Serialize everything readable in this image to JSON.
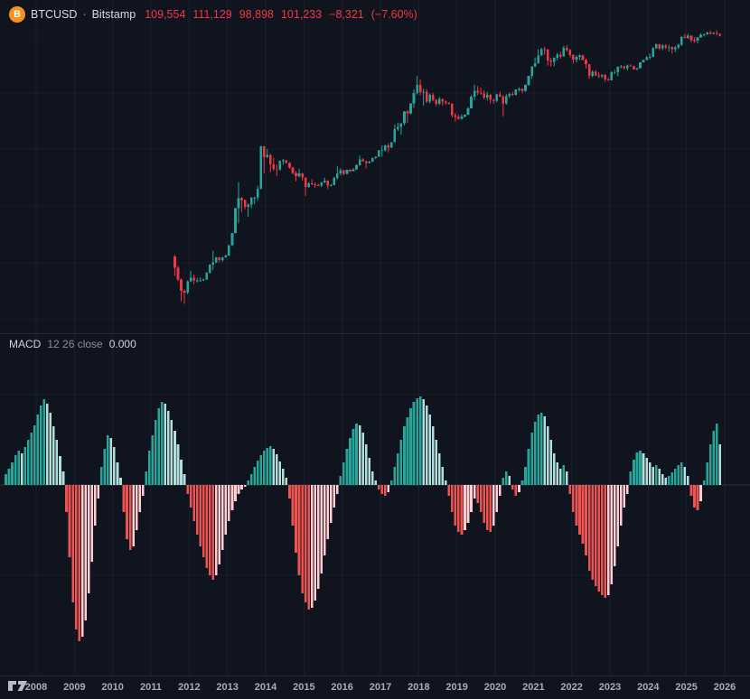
{
  "header": {
    "logo_glyph": "B",
    "symbol": "BTCUSD",
    "separator": "·",
    "exchange": "Bitstamp",
    "open": "109,554",
    "high": "111,129",
    "low": "98,898",
    "close": "101,233",
    "change": "−8,321",
    "change_pct": "(−7.60%)"
  },
  "indicator": {
    "name": "MACD",
    "params": "12 26 close",
    "value": "0.000"
  },
  "time_axis": {
    "years": [
      "2008",
      "2009",
      "2010",
      "2011",
      "2012",
      "2013",
      "2014",
      "2015",
      "2016",
      "2017",
      "2018",
      "2019",
      "2020",
      "2021",
      "2022",
      "2023",
      "2024",
      "2025",
      "2026"
    ]
  },
  "colors": {
    "background": "#10141f",
    "grid": "rgba(255,255,255,0.05)",
    "grid_soft": "rgba(255,255,255,0.04)",
    "zero_line": "rgba(134,139,152,0.28)",
    "divider": "#262b3d",
    "candle_up": "#26a69a",
    "candle_down": "#f23645",
    "hist_grow_above": "#26a69a",
    "hist_fall_above": "#b2dfdb",
    "hist_fall_below": "#ef5350",
    "hist_grow_below": "#ffcdd2",
    "accent_orange": "#f7931a",
    "legend_text": "#d6dae3",
    "muted_text": "#8a8f9c",
    "value_down": "#f23645",
    "axis_text": "#a8adba"
  },
  "chart_data": [
    {
      "type": "candlestick",
      "name": "BTCUSD monthly",
      "y_scale": "log",
      "interval": "1M",
      "start_month": "2011-08",
      "ohlc": [
        [
          13,
          13.9,
          5.9,
          8.2
        ],
        [
          8.2,
          8.9,
          4.8,
          5.1
        ],
        [
          5.1,
          5.3,
          2.1,
          3.2
        ],
        [
          3.2,
          3.4,
          1.9,
          3
        ],
        [
          3,
          4.9,
          2.8,
          4.7
        ],
        [
          4.7,
          7.2,
          4.6,
          5.5
        ],
        [
          5.5,
          6.2,
          4.2,
          4.9
        ],
        [
          4.9,
          5.4,
          4.5,
          4.9
        ],
        [
          4.9,
          5.6,
          4.7,
          4.9
        ],
        [
          4.9,
          5.3,
          4.8,
          5.1
        ],
        [
          5.1,
          6.9,
          5,
          6.7
        ],
        [
          6.7,
          9.5,
          6.5,
          9.4
        ],
        [
          9.4,
          16.4,
          7.5,
          10.2
        ],
        [
          10.2,
          12.7,
          9.9,
          12.4
        ],
        [
          12.4,
          12.8,
          10.2,
          11.2
        ],
        [
          11.2,
          12.8,
          10.5,
          12.6
        ],
        [
          12.6,
          14,
          12.4,
          13.5
        ],
        [
          13.5,
          20.6,
          13.2,
          20.4
        ],
        [
          20.4,
          33.5,
          19.9,
          33.4
        ],
        [
          33.4,
          94,
          33,
          93
        ],
        [
          93,
          266,
          50,
          139
        ],
        [
          139,
          146,
          79,
          128
        ],
        [
          128,
          130,
          88,
          97
        ],
        [
          97,
          112,
          65,
          106
        ],
        [
          106,
          146,
          92,
          141
        ],
        [
          141,
          147,
          109,
          141
        ],
        [
          141,
          230,
          125,
          204
        ],
        [
          204,
          1163,
          198,
          1130
        ],
        [
          1130,
          1156,
          382,
          732
        ],
        [
          732,
          1025,
          710,
          806
        ],
        [
          806,
          830,
          400,
          550
        ],
        [
          550,
          710,
          420,
          458
        ],
        [
          458,
          548,
          340,
          446
        ],
        [
          446,
          635,
          422,
          627
        ],
        [
          627,
          680,
          538,
          640
        ],
        [
          640,
          658,
          565,
          582
        ],
        [
          582,
          600,
          455,
          477
        ],
        [
          477,
          495,
          365,
          387
        ],
        [
          387,
          416,
          275,
          338
        ],
        [
          338,
          460,
          320,
          378
        ],
        [
          378,
          385,
          285,
          320
        ],
        [
          320,
          322,
          152,
          217
        ],
        [
          217,
          265,
          210,
          254
        ],
        [
          254,
          300,
          236,
          244
        ],
        [
          244,
          262,
          210,
          236
        ],
        [
          236,
          248,
          227,
          230
        ],
        [
          230,
          268,
          219,
          263
        ],
        [
          263,
          318,
          255,
          284
        ],
        [
          284,
          288,
          198,
          230
        ],
        [
          230,
          248,
          223,
          236
        ],
        [
          236,
          334,
          234,
          314
        ],
        [
          314,
          502,
          295,
          377
        ],
        [
          377,
          468,
          350,
          430
        ],
        [
          430,
          436,
          350,
          369
        ],
        [
          369,
          441,
          365,
          437
        ],
        [
          437,
          444,
          398,
          416
        ],
        [
          416,
          469,
          410,
          448
        ],
        [
          448,
          550,
          438,
          531
        ],
        [
          531,
          780,
          520,
          673
        ],
        [
          673,
          706,
          605,
          624
        ],
        [
          624,
          628,
          465,
          575
        ],
        [
          575,
          629,
          568,
          609
        ],
        [
          609,
          720,
          600,
          700
        ],
        [
          700,
          755,
          670,
          745
        ],
        [
          745,
          982,
          740,
          963
        ],
        [
          963,
          1180,
          750,
          970
        ],
        [
          970,
          1210,
          920,
          1190
        ],
        [
          1190,
          1290,
          890,
          1080
        ],
        [
          1080,
          1350,
          1060,
          1347
        ],
        [
          1347,
          2760,
          1340,
          2286
        ],
        [
          2286,
          2980,
          2120,
          2480
        ],
        [
          2480,
          2920,
          1830,
          2875
        ],
        [
          2875,
          4740,
          2660,
          4703
        ],
        [
          4703,
          4960,
          2950,
          4360
        ],
        [
          4360,
          6490,
          4150,
          6468
        ],
        [
          6468,
          11400,
          5400,
          9916
        ],
        [
          9916,
          19666,
          9300,
          13880
        ],
        [
          13880,
          17234,
          9000,
          10221
        ],
        [
          10221,
          11790,
          5920,
          10360
        ],
        [
          10360,
          11660,
          6600,
          6928
        ],
        [
          6928,
          9760,
          6425,
          9245
        ],
        [
          9245,
          9990,
          7040,
          7494
        ],
        [
          7494,
          7750,
          5780,
          6404
        ],
        [
          6404,
          8500,
          6070,
          7735
        ],
        [
          7735,
          7760,
          5880,
          7011
        ],
        [
          7011,
          7410,
          6100,
          6626
        ],
        [
          6626,
          6830,
          6190,
          6371
        ],
        [
          6371,
          6560,
          3650,
          4017
        ],
        [
          4017,
          4410,
          3122,
          3747
        ],
        [
          3747,
          4110,
          3350,
          3457
        ],
        [
          3457,
          4190,
          3330,
          3816
        ],
        [
          3816,
          4140,
          3670,
          4106
        ],
        [
          4106,
          5620,
          4030,
          5320
        ],
        [
          5320,
          9090,
          5270,
          8574
        ],
        [
          8574,
          13880,
          7460,
          10817
        ],
        [
          10817,
          13130,
          9080,
          10085
        ],
        [
          10085,
          12320,
          9230,
          9630
        ],
        [
          9630,
          10950,
          7700,
          8293
        ],
        [
          8293,
          10350,
          7300,
          9199
        ],
        [
          9199,
          9500,
          6515,
          7569
        ],
        [
          7569,
          7750,
          6430,
          7193
        ],
        [
          7193,
          9570,
          6850,
          9350
        ],
        [
          9350,
          10500,
          8400,
          8599
        ],
        [
          8599,
          9190,
          3850,
          6438
        ],
        [
          6438,
          9460,
          6140,
          8658
        ],
        [
          8658,
          10070,
          8100,
          9461
        ],
        [
          9461,
          10380,
          8830,
          9137
        ],
        [
          9137,
          11450,
          8900,
          11351
        ],
        [
          11351,
          12480,
          10550,
          11655
        ],
        [
          11655,
          12050,
          9820,
          10776
        ],
        [
          10776,
          14100,
          10400,
          13797
        ],
        [
          13797,
          19900,
          13200,
          19698
        ],
        [
          19698,
          29300,
          17600,
          28990
        ],
        [
          28990,
          42000,
          28000,
          33114
        ],
        [
          33114,
          58350,
          32300,
          45240
        ],
        [
          45240,
          61800,
          44950,
          58789
        ],
        [
          58789,
          64863,
          46930,
          57750
        ],
        [
          57750,
          59500,
          30000,
          37333
        ],
        [
          37333,
          41330,
          28800,
          35041
        ],
        [
          35041,
          42400,
          29300,
          41626
        ],
        [
          41626,
          50500,
          37300,
          47130
        ],
        [
          47130,
          52900,
          39600,
          43791
        ],
        [
          43791,
          66999,
          43300,
          61319
        ],
        [
          61319,
          69000,
          53300,
          56907
        ],
        [
          56907,
          59100,
          42000,
          46217
        ],
        [
          46217,
          47990,
          32950,
          38483
        ],
        [
          38483,
          45820,
          34300,
          43193
        ],
        [
          43193,
          48200,
          37550,
          45539
        ],
        [
          45539,
          47450,
          37580,
          37715
        ],
        [
          37715,
          40020,
          26700,
          31793
        ],
        [
          31793,
          31980,
          17590,
          19985
        ],
        [
          19985,
          24680,
          18780,
          23297
        ],
        [
          23297,
          25200,
          19520,
          20050
        ],
        [
          20050,
          22800,
          18100,
          19432
        ],
        [
          19432,
          21080,
          18190,
          20495
        ],
        [
          20495,
          21480,
          15476,
          17168
        ],
        [
          17168,
          18390,
          16250,
          16548
        ],
        [
          16548,
          23960,
          16490,
          23130
        ],
        [
          23130,
          25250,
          21400,
          23142
        ],
        [
          23142,
          29180,
          19550,
          28473
        ],
        [
          28473,
          31050,
          26940,
          29234
        ],
        [
          29234,
          29850,
          25800,
          27220
        ],
        [
          27220,
          31400,
          24800,
          30472
        ],
        [
          30472,
          31800,
          28850,
          29232
        ],
        [
          29232,
          30180,
          25350,
          25932
        ],
        [
          25932,
          27480,
          24900,
          26962
        ],
        [
          26962,
          34700,
          26540,
          34657
        ],
        [
          34657,
          38420,
          34100,
          37719
        ],
        [
          37719,
          44700,
          37250,
          42265
        ],
        [
          42265,
          48970,
          38500,
          42580
        ],
        [
          42580,
          63930,
          42270,
          61199
        ],
        [
          61199,
          73750,
          59000,
          71334
        ],
        [
          71334,
          72800,
          56500,
          60637
        ],
        [
          60637,
          71950,
          56550,
          67491
        ],
        [
          67491,
          71990,
          58400,
          62673
        ],
        [
          62673,
          69990,
          53500,
          64628
        ],
        [
          64628,
          65600,
          49000,
          58972
        ],
        [
          58972,
          66500,
          52550,
          63330
        ],
        [
          63330,
          73600,
          58900,
          70216
        ],
        [
          70216,
          99650,
          66840,
          96450
        ],
        [
          96450,
          108268,
          91150,
          93429
        ],
        [
          93429,
          109356,
          89165,
          102405
        ],
        [
          102405,
          102780,
          78200,
          84349
        ],
        [
          84349,
          95000,
          76600,
          82534
        ],
        [
          82534,
          95770,
          74430,
          94184
        ],
        [
          94184,
          111980,
          93350,
          104638
        ],
        [
          104638,
          110530,
          98240,
          107167
        ],
        [
          107167,
          120000,
          105100,
          115765
        ],
        [
          115765,
          124500,
          107300,
          108237
        ],
        [
          108237,
          117900,
          107250,
          114056
        ],
        [
          114056,
          126300,
          103500,
          109554
        ],
        [
          109554,
          111129,
          98898,
          101233
        ]
      ]
    },
    {
      "type": "histogram",
      "name": "MACD 12 26 close histogram",
      "scale_note": "relative pane units, no numeric axis shown; zero line centered in lower pane",
      "zero": 0,
      "start_month": "2007-03",
      "values": [
        0.12,
        0.18,
        0.25,
        0.33,
        0.38,
        0.35,
        0.42,
        0.5,
        0.58,
        0.66,
        0.78,
        0.88,
        0.95,
        0.9,
        0.8,
        0.65,
        0.5,
        0.32,
        0.15,
        -0.3,
        -0.8,
        -1.3,
        -1.6,
        -1.73,
        -1.68,
        -1.5,
        -1.2,
        -0.85,
        -0.45,
        -0.15,
        0.2,
        0.4,
        0.55,
        0.52,
        0.42,
        0.25,
        0.08,
        -0.3,
        -0.6,
        -0.72,
        -0.68,
        -0.5,
        -0.3,
        -0.12,
        0.15,
        0.38,
        0.55,
        0.72,
        0.85,
        0.92,
        0.9,
        0.82,
        0.72,
        0.6,
        0.45,
        0.28,
        0.12,
        -0.1,
        -0.25,
        -0.4,
        -0.55,
        -0.68,
        -0.8,
        -0.92,
        -1.0,
        -1.05,
        -1.0,
        -0.88,
        -0.72,
        -0.55,
        -0.4,
        -0.28,
        -0.18,
        -0.1,
        -0.05,
        -0.02,
        0.05,
        0.12,
        0.2,
        0.27,
        0.33,
        0.38,
        0.41,
        0.43,
        0.4,
        0.34,
        0.26,
        0.18,
        0.08,
        -0.15,
        -0.45,
        -0.75,
        -1.0,
        -1.2,
        -1.3,
        -1.38,
        -1.36,
        -1.28,
        -1.15,
        -0.98,
        -0.78,
        -0.6,
        -0.42,
        -0.25,
        -0.1,
        0.1,
        0.25,
        0.4,
        0.52,
        0.62,
        0.68,
        0.66,
        0.58,
        0.45,
        0.3,
        0.15,
        0.05,
        -0.05,
        -0.1,
        -0.12,
        -0.08,
        0.05,
        0.2,
        0.35,
        0.5,
        0.65,
        0.75,
        0.85,
        0.92,
        0.96,
        0.98,
        0.95,
        0.88,
        0.78,
        0.65,
        0.5,
        0.35,
        0.2,
        0.05,
        -0.12,
        -0.3,
        -0.45,
        -0.52,
        -0.55,
        -0.5,
        -0.42,
        -0.3,
        -0.15,
        -0.2,
        -0.3,
        -0.42,
        -0.5,
        -0.52,
        -0.45,
        -0.3,
        -0.12,
        0.08,
        0.15,
        0.1,
        -0.05,
        -0.12,
        -0.08,
        0.05,
        0.2,
        0.4,
        0.58,
        0.7,
        0.78,
        0.8,
        0.76,
        0.65,
        0.5,
        0.35,
        0.25,
        0.18,
        0.22,
        0.15,
        -0.1,
        -0.3,
        -0.45,
        -0.55,
        -0.65,
        -0.78,
        -0.95,
        -1.05,
        -1.12,
        -1.18,
        -1.22,
        -1.25,
        -1.22,
        -1.1,
        -0.9,
        -0.68,
        -0.45,
        -0.25,
        -0.1,
        0.15,
        0.28,
        0.36,
        0.38,
        0.35,
        0.3,
        0.25,
        0.2,
        0.22,
        0.18,
        0.12,
        0.08,
        0.1,
        0.14,
        0.18,
        0.22,
        0.25,
        0.2,
        0.1,
        -0.12,
        -0.25,
        -0.28,
        -0.18,
        0.05,
        0.25,
        0.45,
        0.6,
        0.68,
        0.45
      ]
    }
  ]
}
